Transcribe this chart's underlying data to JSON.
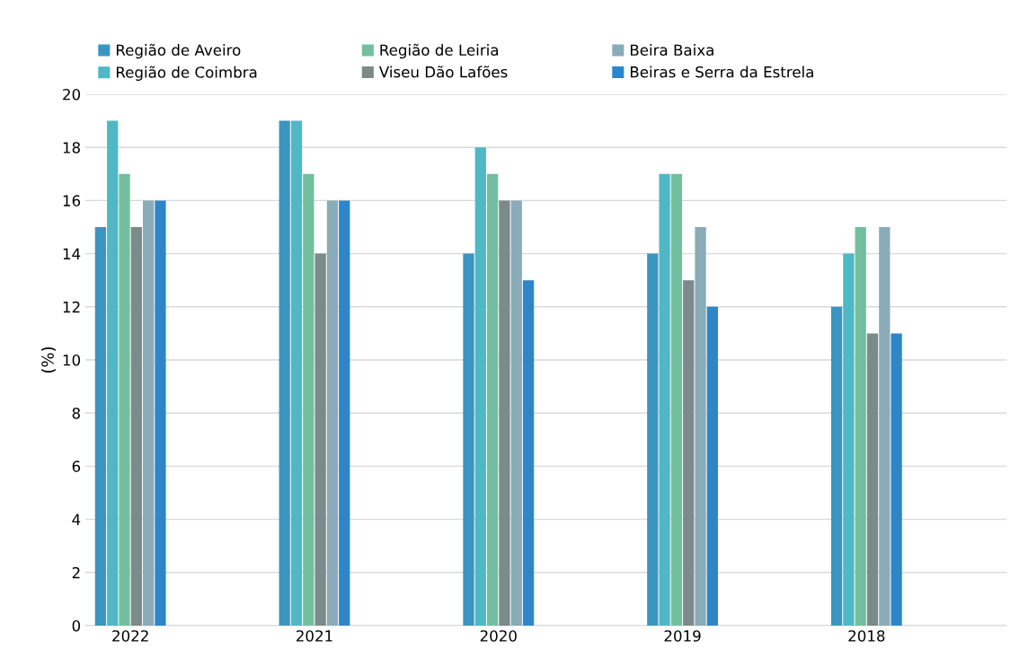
{
  "chart_data": {
    "type": "bar",
    "ylabel": "(%)",
    "categories": [
      "2022",
      "2021",
      "2020",
      "2019",
      "2018"
    ],
    "series": [
      {
        "name": "Região de Aveiro",
        "color": "#3a95c0",
        "values": [
          15,
          19,
          14,
          14,
          12
        ]
      },
      {
        "name": "Região de Coimbra",
        "color": "#4fb8c5",
        "values": [
          19,
          19,
          18,
          17,
          14
        ]
      },
      {
        "name": "Região de Leiria",
        "color": "#72bfa0",
        "values": [
          17,
          17,
          17,
          17,
          15
        ]
      },
      {
        "name": "Viseu Dão Lafões",
        "color": "#7b8a8b",
        "values": [
          15,
          14,
          16,
          13,
          11
        ]
      },
      {
        "name": "Beira Baixa",
        "color": "#8aabb8",
        "values": [
          16,
          16,
          16,
          15,
          15
        ]
      },
      {
        "name": "Beiras e Serra da Estrela",
        "color": "#2e86c9",
        "values": [
          16,
          16,
          13,
          12,
          11
        ]
      }
    ],
    "ylim": [
      0,
      20
    ],
    "yticks": [
      0,
      2,
      4,
      6,
      8,
      10,
      12,
      14,
      16,
      18,
      20
    ],
    "grid": "y",
    "legend": "top"
  }
}
